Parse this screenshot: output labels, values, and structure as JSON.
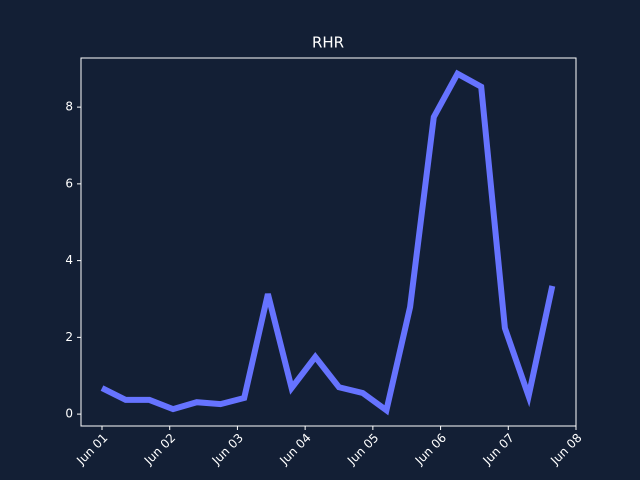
{
  "chart_data": {
    "type": "line",
    "title": "RHR",
    "x": [
      0,
      0.35,
      0.7,
      1.05,
      1.4,
      1.75,
      2.1,
      2.45,
      2.8,
      3.15,
      3.5,
      3.85,
      4.2,
      4.55,
      4.9,
      5.25,
      5.6,
      5.95,
      6.3,
      6.65
    ],
    "series": [
      {
        "name": "RHR",
        "color": "#6673ff",
        "values": [
          0.68,
          0.37,
          0.37,
          0.13,
          0.31,
          0.26,
          0.42,
          3.13,
          0.68,
          1.49,
          0.7,
          0.55,
          0.1,
          2.79,
          7.74,
          8.87,
          8.53,
          2.24,
          0.47,
          3.34
        ]
      }
    ],
    "xlim": [
      -0.31,
      7
    ],
    "xticks": [
      {
        "value": 0,
        "label": "Jun 01"
      },
      {
        "value": 1,
        "label": "Jun 02"
      },
      {
        "value": 2,
        "label": "Jun 03"
      },
      {
        "value": 3,
        "label": "Jun 04"
      },
      {
        "value": 4,
        "label": "Jun 05"
      },
      {
        "value": 5,
        "label": "Jun 06"
      },
      {
        "value": 6,
        "label": "Jun 07"
      },
      {
        "value": 7,
        "label": "Jun 08"
      }
    ],
    "ylim": [
      -0.31,
      9.28
    ],
    "yticks": [
      0,
      2,
      4,
      6,
      8
    ],
    "grid": false
  }
}
